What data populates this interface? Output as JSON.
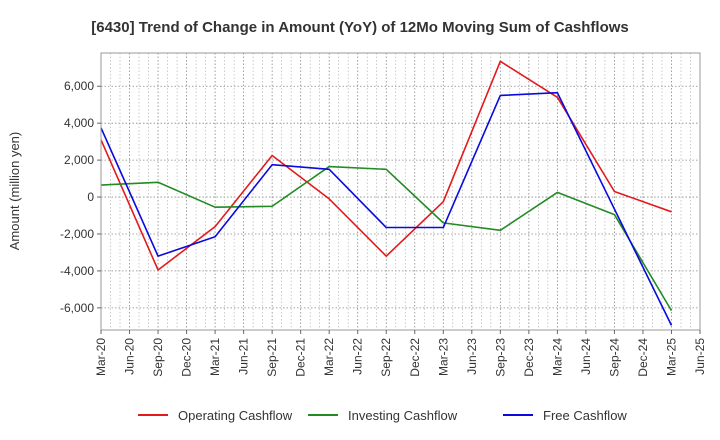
{
  "chart_data": {
    "type": "line",
    "title": "[6430]  Trend of Change in Amount (YoY) of 12Mo Moving Sum of Cashflows",
    "xlabel": "",
    "ylabel": "Amount (million yen)",
    "ylim": [
      -7200,
      7800
    ],
    "yticks": [
      -6000,
      -4000,
      -2000,
      0,
      2000,
      4000,
      6000
    ],
    "ytick_labels": [
      "-6,000",
      "-4,000",
      "-2,000",
      "0",
      "2,000",
      "4,000",
      "6,000"
    ],
    "x_tick_labels": [
      "Mar-20",
      "Jun-20",
      "Sep-20",
      "Dec-20",
      "Mar-21",
      "Jun-21",
      "Sep-21",
      "Dec-21",
      "Mar-22",
      "Jun-22",
      "Sep-22",
      "Dec-22",
      "Mar-23",
      "Jun-23",
      "Sep-23",
      "Dec-23",
      "Mar-24",
      "Jun-24",
      "Sep-24",
      "Dec-24",
      "Mar-25",
      "Jun-25"
    ],
    "grid": true,
    "legend_position": "bottom",
    "series": [
      {
        "name": "Operating Cashflow",
        "color": "#e31a1c",
        "points": [
          {
            "x": "Mar-20",
            "y": 3100
          },
          {
            "x": "Sep-20",
            "y": -3950
          },
          {
            "x": "Mar-21",
            "y": -1600
          },
          {
            "x": "Sep-21",
            "y": 2250
          },
          {
            "x": "Mar-22",
            "y": -100
          },
          {
            "x": "Sep-22",
            "y": -3200
          },
          {
            "x": "Mar-23",
            "y": -250
          },
          {
            "x": "Sep-23",
            "y": 7350
          },
          {
            "x": "Mar-24",
            "y": 5400
          },
          {
            "x": "Sep-24",
            "y": 300
          },
          {
            "x": "Mar-25",
            "y": -800
          }
        ]
      },
      {
        "name": "Investing Cashflow",
        "color": "#238b23",
        "points": [
          {
            "x": "Mar-20",
            "y": 650
          },
          {
            "x": "Sep-20",
            "y": 800
          },
          {
            "x": "Mar-21",
            "y": -550
          },
          {
            "x": "Sep-21",
            "y": -500
          },
          {
            "x": "Mar-22",
            "y": 1650
          },
          {
            "x": "Sep-22",
            "y": 1500
          },
          {
            "x": "Mar-23",
            "y": -1400
          },
          {
            "x": "Sep-23",
            "y": -1800
          },
          {
            "x": "Mar-24",
            "y": 250
          },
          {
            "x": "Sep-24",
            "y": -950
          },
          {
            "x": "Mar-25",
            "y": -6150
          }
        ]
      },
      {
        "name": "Free Cashflow",
        "color": "#0a0adf",
        "points": [
          {
            "x": "Mar-20",
            "y": 3750
          },
          {
            "x": "Sep-20",
            "y": -3200
          },
          {
            "x": "Mar-21",
            "y": -2150
          },
          {
            "x": "Sep-21",
            "y": 1750
          },
          {
            "x": "Mar-22",
            "y": 1500
          },
          {
            "x": "Sep-22",
            "y": -1650
          },
          {
            "x": "Mar-23",
            "y": -1650
          },
          {
            "x": "Sep-23",
            "y": 5500
          },
          {
            "x": "Mar-24",
            "y": 5650
          },
          {
            "x": "Sep-24",
            "y": -650
          },
          {
            "x": "Mar-25",
            "y": -6950
          }
        ]
      }
    ]
  }
}
